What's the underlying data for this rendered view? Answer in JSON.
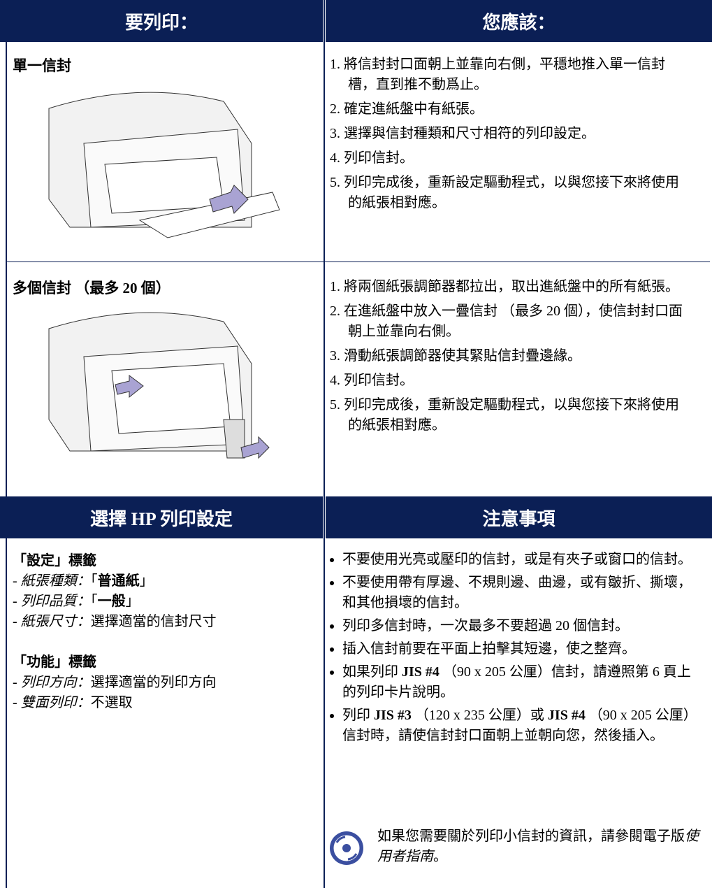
{
  "headers": [
    "要列印：",
    "您應該："
  ],
  "rows": [
    {
      "title": "單一信封",
      "steps": [
        "1. 將信封封口面朝上並靠向右側，平穩地推入單一信封槽，直到推不動爲止。",
        "2. 確定進紙盤中有紙張。",
        "3. 選擇與信封種類和尺寸相符的列印設定。",
        "4. 列印信封。",
        "5. 列印完成後，重新設定驅動程式，以與您接下來將使用的紙張相對應。"
      ]
    },
    {
      "title": "多個信封 （最多 20 個）",
      "steps": [
        "1. 將兩個紙張調節器都拉出，取出進紙盤中的所有紙張。",
        "2. 在進紙盤中放入一疊信封 （最多 20 個），使信封封口面朝上並靠向右側。",
        "3. 滑動紙張調節器使其緊貼信封疊邊緣。",
        "4. 列印信封。",
        "5. 列印完成後，重新設定驅動程式，以與您接下來將使用的紙張相對應。"
      ]
    }
  ],
  "settings": {
    "header": "選擇 HP 列印設定",
    "marker": "-",
    "groups": [
      {
        "title": "「設定」標籤",
        "items": [
          {
            "label": "紙張種類：",
            "value": [
              "「",
              {
                "bold": "普通紙"
              },
              "」"
            ]
          },
          {
            "label": "列印品質：",
            "value": [
              "「",
              {
                "bold": "一般"
              },
              "」"
            ]
          },
          {
            "label": "紙張尺寸：",
            "value": [
              "選擇適當的信封尺寸"
            ]
          }
        ]
      },
      {
        "title": "「功能」標籤",
        "items": [
          {
            "label": "列印方向：",
            "value": [
              "選擇適當的列印方向"
            ]
          },
          {
            "label": "雙面列印：",
            "value": [
              "不選取"
            ]
          }
        ]
      }
    ]
  },
  "notes": {
    "header": "注意事項",
    "items": [
      [
        "不要使用光亮或壓印的信封，或是有夾子或窗口的信封。"
      ],
      [
        "不要使用帶有厚邊、不規則邊、曲邊，或有皺折、撕壞，和其他損壞的信封。"
      ],
      [
        "列印多信封時，一次最多不要超過 20 個信封。"
      ],
      [
        "插入信封前要在平面上拍擊其短邊，使之整齊。"
      ],
      [
        "如果列印 ",
        {
          "bold": "JIS #4"
        },
        " （90 x 205 公厘）信封，請遵照第 6 頁上的列印卡片說明。"
      ],
      [
        "列印 ",
        {
          "bold": "JIS #3"
        },
        " （120 x 235 公厘）或 ",
        {
          "bold": "JIS #4"
        },
        " （90 x 205 公厘）信封時，請使信封封口面朝上並朝向您，然後插入。"
      ]
    ],
    "tip": [
      "如果您需要關於列印小信封的資訊，請參閱電子版",
      {
        "italic": "使用者指南"
      },
      "。"
    ]
  }
}
